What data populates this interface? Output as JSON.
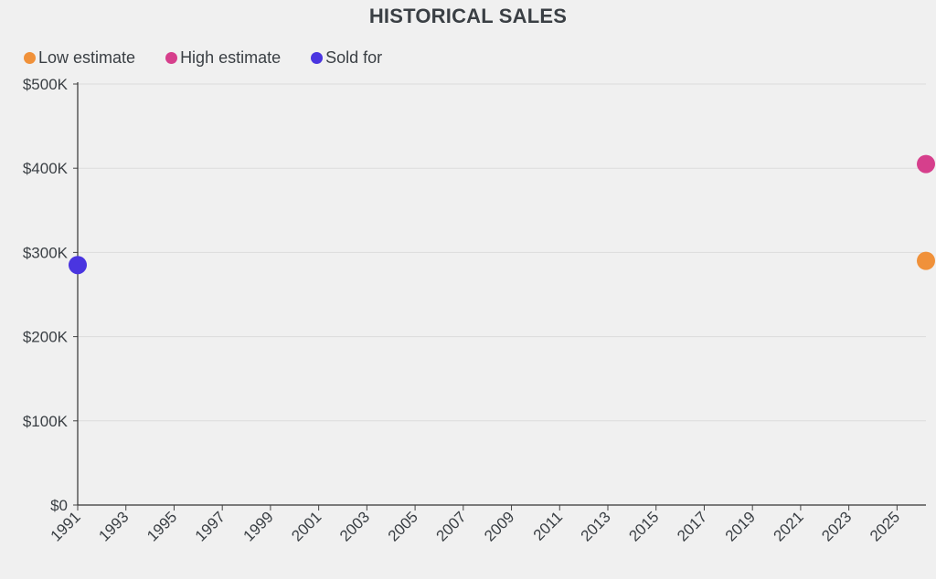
{
  "chart_data": {
    "type": "scatter",
    "title": "HISTORICAL SALES",
    "xlabel": "",
    "ylabel": "",
    "xlim": [
      1991,
      2026.2
    ],
    "ylim": [
      0,
      500000
    ],
    "x_ticks": [
      1991,
      1993,
      1995,
      1997,
      1999,
      2001,
      2003,
      2005,
      2007,
      2009,
      2011,
      2013,
      2015,
      2017,
      2019,
      2021,
      2023,
      2025
    ],
    "y_ticks": [
      {
        "value": 0,
        "label": "$0"
      },
      {
        "value": 100000,
        "label": "$100K"
      },
      {
        "value": 200000,
        "label": "$200K"
      },
      {
        "value": 300000,
        "label": "$300K"
      },
      {
        "value": 400000,
        "label": "$400K"
      },
      {
        "value": 500000,
        "label": "$500K"
      }
    ],
    "grid": true,
    "legend_position": "top-left",
    "series": [
      {
        "name": "Low estimate",
        "color": "#f0913a",
        "points": [
          {
            "x": 2026.2,
            "y": 290000
          }
        ]
      },
      {
        "name": "High estimate",
        "color": "#d63f8c",
        "points": [
          {
            "x": 2026.2,
            "y": 405000
          }
        ]
      },
      {
        "name": "Sold for",
        "color": "#4a35e0",
        "points": [
          {
            "x": 1991,
            "y": 285000
          }
        ]
      }
    ]
  }
}
